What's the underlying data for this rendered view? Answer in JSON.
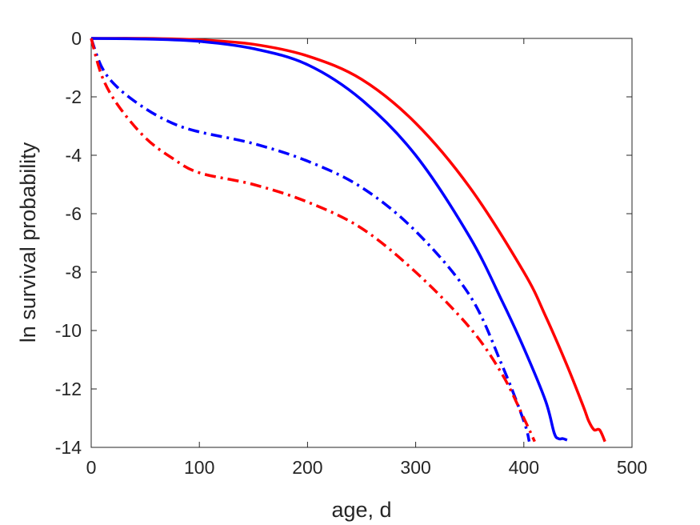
{
  "chart_data": {
    "type": "line",
    "title": "",
    "xlabel": "age, d",
    "ylabel": "ln survival probability",
    "xlim": [
      0,
      500
    ],
    "ylim": [
      -14,
      0
    ],
    "xticks": [
      0,
      100,
      200,
      300,
      400,
      500
    ],
    "yticks": [
      0,
      -2,
      -4,
      -6,
      -8,
      -10,
      -12,
      -14
    ],
    "xtick_labels": [
      "0",
      "100",
      "200",
      "300",
      "400",
      "500"
    ],
    "ytick_labels": [
      "0",
      "-2",
      "-4",
      "-6",
      "-8",
      "-10",
      "-12",
      "-14"
    ],
    "grid": false,
    "legend": "none",
    "series": [
      {
        "color": "#ff0000",
        "linestyle": "solid",
        "points": [
          [
            0,
            0
          ],
          [
            50,
            0
          ],
          [
            100,
            -0.05
          ],
          [
            150,
            -0.2
          ],
          [
            200,
            -0.6
          ],
          [
            250,
            -1.4
          ],
          [
            300,
            -2.9
          ],
          [
            350,
            -5.1
          ],
          [
            400,
            -8.0
          ],
          [
            420,
            -9.5
          ],
          [
            440,
            -11.2
          ],
          [
            455,
            -12.6
          ],
          [
            460,
            -13.1
          ],
          [
            465,
            -13.4
          ],
          [
            470,
            -13.4
          ],
          [
            475,
            -13.8
          ]
        ]
      },
      {
        "color": "#0000ff",
        "linestyle": "solid",
        "points": [
          [
            0,
            0
          ],
          [
            50,
            -0.02
          ],
          [
            100,
            -0.1
          ],
          [
            150,
            -0.35
          ],
          [
            200,
            -0.9
          ],
          [
            250,
            -2.1
          ],
          [
            300,
            -4.0
          ],
          [
            350,
            -6.8
          ],
          [
            380,
            -9.0
          ],
          [
            400,
            -10.6
          ],
          [
            420,
            -12.4
          ],
          [
            428,
            -13.5
          ],
          [
            432,
            -13.7
          ],
          [
            436,
            -13.7
          ],
          [
            440,
            -13.75
          ]
        ]
      },
      {
        "color": "#0000ff",
        "linestyle": "dashdot",
        "points": [
          [
            0,
            0
          ],
          [
            10,
            -1.0
          ],
          [
            25,
            -1.7
          ],
          [
            50,
            -2.4
          ],
          [
            75,
            -2.9
          ],
          [
            100,
            -3.2
          ],
          [
            150,
            -3.6
          ],
          [
            200,
            -4.2
          ],
          [
            250,
            -5.1
          ],
          [
            300,
            -6.6
          ],
          [
            350,
            -8.8
          ],
          [
            380,
            -11.2
          ],
          [
            400,
            -13.1
          ],
          [
            405,
            -13.8
          ]
        ]
      },
      {
        "color": "#ff0000",
        "linestyle": "dashdot",
        "points": [
          [
            0,
            0
          ],
          [
            10,
            -1.3
          ],
          [
            25,
            -2.3
          ],
          [
            50,
            -3.4
          ],
          [
            75,
            -4.1
          ],
          [
            100,
            -4.6
          ],
          [
            150,
            -5.0
          ],
          [
            200,
            -5.6
          ],
          [
            250,
            -6.5
          ],
          [
            300,
            -8.0
          ],
          [
            350,
            -9.9
          ],
          [
            380,
            -11.5
          ],
          [
            400,
            -13.0
          ],
          [
            410,
            -13.8
          ]
        ]
      }
    ]
  }
}
